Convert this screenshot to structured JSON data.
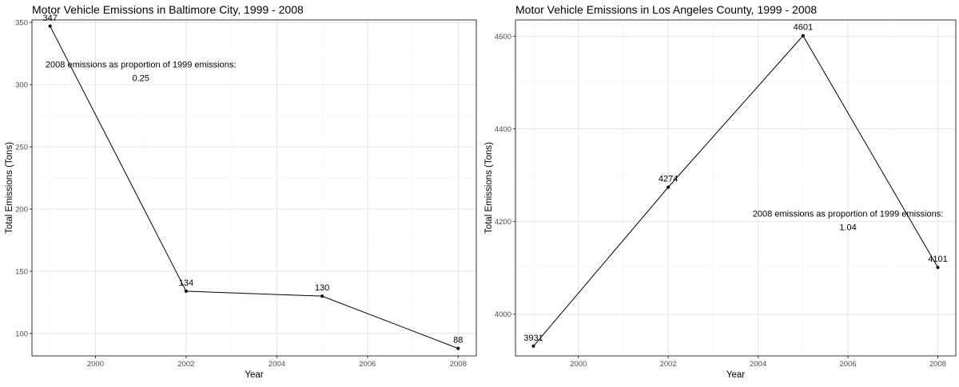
{
  "chart_data": [
    {
      "type": "line",
      "title": "Motor Vehicle Emissions in Baltimore City, 1999 - 2008",
      "xlabel": "Year",
      "ylabel": "Total Emissions (Tons)",
      "xlim": [
        1998.6,
        2008.4
      ],
      "ylim": [
        82,
        352
      ],
      "xticks": [
        2000,
        2002,
        2004,
        2006,
        2008
      ],
      "yticks": [
        100,
        150,
        200,
        250,
        300,
        350
      ],
      "x": [
        1999,
        2002,
        2005,
        2008
      ],
      "y": [
        347,
        134,
        130,
        88
      ],
      "data_labels": [
        "347",
        "134",
        "130",
        "88"
      ],
      "annotation": {
        "line1": "2008 emissions as proportion of 1999 emissions:",
        "line2": "0.25",
        "x": 2001,
        "y": 310
      },
      "grid": true,
      "legend": "none"
    },
    {
      "type": "line",
      "title": "Motor Vehicle Emissions in Los Angeles County, 1999 - 2008",
      "xlabel": "Year",
      "ylabel": "Total Emissions (Tons)",
      "xlim": [
        1998.6,
        2008.4
      ],
      "ylim": [
        3910,
        4635
      ],
      "xticks": [
        2000,
        2002,
        2004,
        2006,
        2008
      ],
      "yticks": [
        4000,
        4200,
        4400,
        4600
      ],
      "x": [
        1999,
        2002,
        2005,
        2008
      ],
      "y": [
        3931,
        4274,
        4601,
        4101
      ],
      "data_labels": [
        "3931",
        "4274",
        "4601",
        "4101"
      ],
      "annotation": {
        "line1": "2008 emissions as proportion of 1999 emissions:",
        "line2": "1.04",
        "x": 2006,
        "y": 4200
      },
      "grid": true,
      "legend": "none"
    }
  ]
}
